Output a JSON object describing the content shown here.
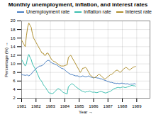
{
  "chart_data": {
    "type": "line",
    "title": "Monthly unemployment, inflation, and interest rates",
    "xlabel": "Year",
    "ylabel": "Percentage (%)",
    "x": [
      1981.0,
      1981.083333,
      1981.166667,
      1981.25,
      1981.333333,
      1981.416667,
      1981.5,
      1981.583333,
      1981.666667,
      1981.75,
      1981.833333,
      1981.916667,
      1982.0,
      1982.083333,
      1982.166667,
      1982.25,
      1982.333333,
      1982.416667,
      1982.5,
      1982.583333,
      1982.666667,
      1982.75,
      1982.833333,
      1982.916667,
      1983.0,
      1983.083333,
      1983.166667,
      1983.25,
      1983.333333,
      1983.416667,
      1983.5,
      1983.583333,
      1983.666667,
      1983.75,
      1983.833333,
      1983.916667,
      1984.0,
      1984.083333,
      1984.166667,
      1984.25,
      1984.333333,
      1984.416667,
      1984.5,
      1984.583333,
      1984.666667,
      1984.75,
      1984.833333,
      1984.916667,
      1985.0,
      1985.083333,
      1985.166667,
      1985.25,
      1985.333333,
      1985.416667,
      1985.5,
      1985.583333,
      1985.666667,
      1985.75,
      1985.833333,
      1985.916667,
      1986.0,
      1986.083333,
      1986.166667,
      1986.25,
      1986.333333,
      1986.416667,
      1986.5,
      1986.583333,
      1986.666667,
      1986.75,
      1986.833333,
      1986.916667,
      1987.0,
      1987.083333,
      1987.166667,
      1987.25,
      1987.333333,
      1987.416667,
      1987.5,
      1987.583333,
      1987.666667,
      1987.75,
      1987.833333,
      1987.916667,
      1988.0,
      1988.083333,
      1988.166667,
      1988.25,
      1988.333333,
      1988.416667,
      1988.5,
      1988.583333,
      1988.666667,
      1988.75,
      1988.833333,
      1988.916667
    ],
    "series": [
      {
        "name": "Unemployment rate",
        "color": "#4a7fc1",
        "values": [
          7.5,
          7.4,
          7.4,
          7.3,
          7.4,
          7.4,
          7.2,
          7.4,
          7.6,
          8.0,
          8.3,
          8.6,
          8.9,
          9.1,
          9.3,
          9.5,
          9.5,
          9.6,
          9.8,
          10.1,
          10.4,
          10.7,
          10.8,
          10.8,
          10.4,
          10.3,
          10.1,
          10.0,
          9.9,
          9.8,
          9.6,
          9.4,
          9.2,
          9.0,
          8.9,
          8.8,
          8.6,
          8.3,
          8.1,
          7.9,
          7.7,
          7.5,
          7.5,
          7.4,
          7.3,
          7.2,
          7.2,
          7.2,
          7.0,
          7.0,
          7.1,
          7.2,
          7.1,
          7.0,
          7.0,
          7.1,
          7.2,
          7.0,
          6.9,
          6.8,
          6.7,
          6.8,
          6.8,
          6.7,
          6.7,
          6.6,
          6.5,
          6.5,
          6.3,
          6.2,
          6.1,
          6.0,
          5.9,
          5.8,
          5.7,
          5.7,
          5.6,
          5.5,
          5.5,
          5.4,
          5.5,
          5.4,
          5.4,
          5.5,
          5.5,
          5.4,
          5.4,
          5.3,
          5.4,
          5.3,
          5.2,
          5.3,
          5.3,
          5.3,
          5.4,
          5.3
        ]
      },
      {
        "name": "Inflation rate",
        "color": "#3dbfb0",
        "values": [
          11.0,
          10.5,
          10.0,
          9.5,
          10.0,
          11.5,
          12.2,
          11.5,
          11.0,
          10.0,
          9.5,
          9.0,
          8.5,
          7.8,
          7.2,
          6.5,
          6.2,
          5.8,
          5.2,
          4.8,
          4.5,
          4.0,
          3.6,
          3.2,
          3.2,
          3.1,
          3.1,
          3.3,
          3.6,
          3.9,
          4.2,
          4.2,
          4.0,
          3.8,
          3.5,
          3.3,
          3.2,
          3.1,
          3.0,
          4.7,
          4.9,
          5.2,
          5.4,
          5.2,
          5.0,
          4.7,
          4.5,
          4.3,
          4.1,
          3.9,
          3.7,
          3.6,
          3.5,
          3.4,
          3.5,
          3.5,
          3.6,
          3.7,
          3.5,
          3.4,
          3.4,
          3.4,
          3.3,
          3.3,
          3.4,
          3.5,
          3.6,
          3.5,
          3.4,
          3.3,
          3.2,
          3.3,
          3.4,
          3.5,
          3.6,
          3.8,
          4.0,
          4.2,
          4.3,
          4.4,
          4.5,
          4.5,
          4.4,
          4.5,
          4.6,
          4.6,
          4.5,
          4.5,
          4.6,
          4.7,
          4.8,
          4.9,
          5.0,
          4.9,
          4.9,
          4.8
        ]
      },
      {
        "name": "Interest rate",
        "color": "#b09030",
        "values": [
          15.5,
          15.0,
          14.5,
          14.0,
          16.5,
          18.5,
          19.5,
          19.0,
          18.5,
          17.0,
          16.0,
          15.5,
          15.0,
          14.5,
          14.0,
          13.5,
          13.0,
          12.5,
          12.5,
          12.0,
          12.0,
          12.5,
          12.5,
          12.0,
          11.5,
          11.0,
          10.8,
          10.5,
          10.5,
          10.2,
          10.0,
          9.8,
          9.6,
          9.5,
          9.5,
          9.5,
          9.6,
          9.7,
          9.8,
          11.5,
          11.8,
          12.0,
          11.5,
          11.0,
          10.5,
          10.0,
          9.5,
          9.0,
          8.5,
          8.0,
          8.5,
          9.0,
          9.0,
          9.2,
          9.0,
          8.5,
          8.0,
          7.5,
          7.2,
          7.0,
          6.8,
          6.8,
          7.0,
          7.2,
          7.5,
          7.5,
          7.3,
          7.0,
          6.8,
          6.5,
          6.5,
          6.8,
          7.0,
          7.2,
          7.5,
          7.5,
          7.8,
          8.0,
          8.3,
          8.5,
          8.5,
          8.3,
          8.0,
          8.2,
          8.5,
          8.8,
          9.0,
          9.2,
          9.0,
          8.8,
          8.5,
          8.8,
          9.0,
          9.2,
          9.3,
          9.4
        ]
      }
    ],
    "xlim": [
      1981.0,
      1989.92
    ],
    "xticks": [
      1981,
      1982,
      1983,
      1984,
      1985,
      1986,
      1987,
      1988,
      1989
    ],
    "ylim": [
      2,
      20
    ],
    "yticks": [
      2,
      4,
      6,
      8,
      10,
      12,
      14,
      16,
      18,
      20
    ],
    "grid": true,
    "legend": "upper right"
  }
}
